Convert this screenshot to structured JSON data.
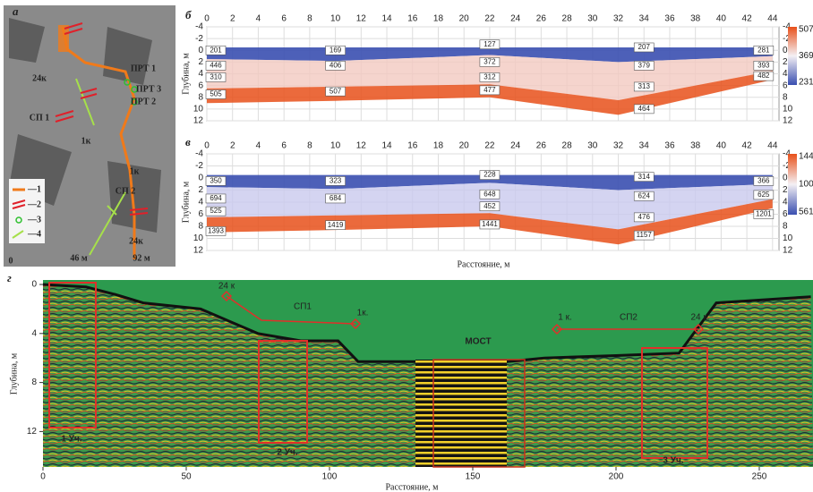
{
  "panels": {
    "a": {
      "letter": "а",
      "texts": [
        "24к",
        "ПРТ 1",
        "ПРТ 3",
        "ПРТ 2",
        "СП 1",
        "1к",
        "1к",
        "СП 2",
        "24к",
        "46 м",
        "92 м",
        "0"
      ],
      "legend": [
        "—1",
        "—2",
        "—3",
        "—4"
      ]
    },
    "b": {
      "letter": "б",
      "y_title": "Глубина, м",
      "xticks": [
        0,
        2,
        4,
        6,
        8,
        10,
        12,
        14,
        16,
        18,
        20,
        22,
        24,
        26,
        28,
        30,
        32,
        34,
        36,
        38,
        40,
        42,
        44
      ],
      "yticks": [
        -4,
        -2,
        0,
        2,
        4,
        6,
        8,
        10,
        12
      ],
      "labels": [
        201,
        169,
        127,
        207,
        281,
        446,
        406,
        372,
        379,
        393,
        310,
        312,
        482,
        505,
        507,
        477,
        313,
        464
      ],
      "colorbar": [
        507,
        369,
        231
      ]
    },
    "v": {
      "letter": "в",
      "y_title": "Глубина, м",
      "x_title": "Расстояние, м",
      "xticks": [
        0,
        2,
        4,
        6,
        8,
        10,
        12,
        14,
        16,
        18,
        20,
        22,
        24,
        26,
        28,
        30,
        32,
        34,
        36,
        38,
        40,
        42,
        44
      ],
      "yticks": [
        -4,
        -2,
        0,
        2,
        4,
        6,
        8,
        10,
        12
      ],
      "labels": [
        350,
        323,
        228,
        314,
        366,
        694,
        684,
        648,
        624,
        625,
        525,
        452,
        476,
        1393,
        1419,
        1441,
        1157,
        1201
      ],
      "colorbar": [
        144,
        100,
        561
      ]
    },
    "g": {
      "letter": "г",
      "y_title": "Глубина, м",
      "x_title": "Расстояние, м",
      "xticks": [
        0,
        50,
        100,
        150,
        200,
        250
      ],
      "yticks": [
        0,
        4,
        8,
        12
      ],
      "annotations": [
        "24 к",
        "СП1",
        "1к.",
        "МОСТ",
        "1 к.",
        "СП2",
        "24 к.",
        "1 Уч.",
        "2 Уч.",
        "3 Уч."
      ]
    }
  }
}
